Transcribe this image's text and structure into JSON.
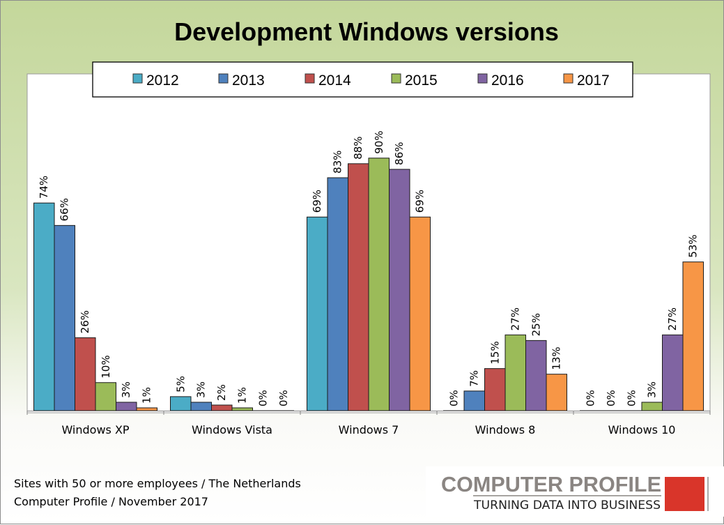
{
  "chart_data": {
    "type": "bar",
    "title": "Development Windows versions",
    "categories": [
      "Windows XP",
      "Windows Vista",
      "Windows 7",
      "Windows 8",
      "Windows 10"
    ],
    "series": [
      {
        "name": "2012",
        "color": "#4bacc6",
        "values": [
          74,
          5,
          69,
          0,
          0
        ],
        "labels": [
          "74%",
          "5%",
          "69%",
          "0%",
          "0%"
        ]
      },
      {
        "name": "2013",
        "color": "#4f81bd",
        "values": [
          66,
          3,
          83,
          7,
          0
        ],
        "labels": [
          "66%",
          "3%",
          "83%",
          "7%",
          "0%"
        ]
      },
      {
        "name": "2014",
        "color": "#c0504d",
        "values": [
          26,
          2,
          88,
          15,
          0
        ],
        "labels": [
          "26%",
          "2%",
          "88%",
          "15%",
          "0%"
        ]
      },
      {
        "name": "2015",
        "color": "#9bbb59",
        "values": [
          10,
          1,
          90,
          27,
          3
        ],
        "labels": [
          "10%",
          "1%",
          "90%",
          "27%",
          "3%"
        ]
      },
      {
        "name": "2016",
        "color": "#8064a2",
        "values": [
          3,
          0,
          86,
          25,
          27
        ],
        "labels": [
          "3%",
          "0%",
          "86%",
          "25%",
          "27%"
        ]
      },
      {
        "name": "2017",
        "color": "#f79646",
        "values": [
          1,
          0,
          69,
          13,
          53
        ],
        "labels": [
          "1%",
          "0%",
          "69%",
          "13%",
          "53%"
        ]
      }
    ],
    "xlabel": "",
    "ylabel": "",
    "ylim": [
      0,
      120
    ],
    "y_axis_visible": false,
    "grid": false,
    "legend": "top"
  },
  "footer": {
    "line1": "Sites with 50 or more employees / The Netherlands",
    "line2": "Computer Profile / November 2017"
  },
  "logo": {
    "name": "COMPUTER PROFILE",
    "tagline": "TURNING DATA INTO BUSINESS",
    "accent": "#d9352a"
  }
}
